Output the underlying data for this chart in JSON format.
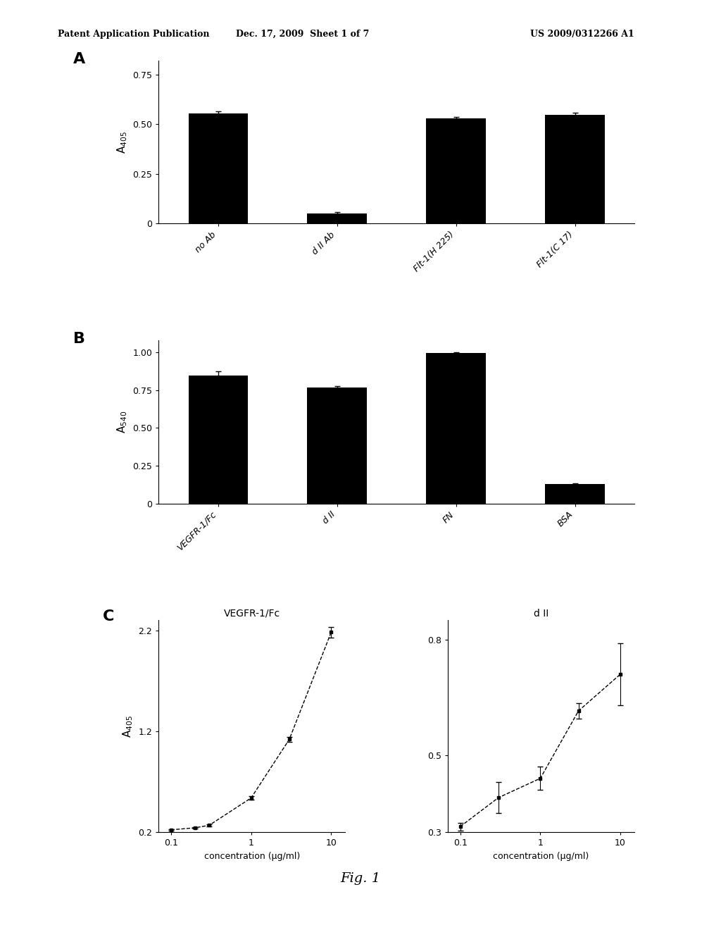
{
  "panel_A": {
    "categories": [
      "no Ab",
      "d II Ab",
      "Flt-1(H 225)",
      "Flt-1(C 17)"
    ],
    "values": [
      0.555,
      0.052,
      0.528,
      0.545
    ],
    "errors": [
      0.01,
      0.005,
      0.008,
      0.012
    ],
    "ylabel": "A$_{405}$",
    "yticks": [
      0,
      0.25,
      0.5,
      0.75
    ],
    "ylim": [
      0,
      0.82
    ],
    "label": "A"
  },
  "panel_B": {
    "categories": [
      "VEGFR-1/Fc",
      "d II",
      "FN",
      "BSA"
    ],
    "values": [
      0.845,
      0.77,
      0.995,
      0.13
    ],
    "errors": [
      0.03,
      0.008,
      0.008,
      0.005
    ],
    "ylabel": "A$_{540}$",
    "yticks": [
      0,
      0.25,
      0.5,
      0.75,
      1.0
    ],
    "ylim": [
      0,
      1.08
    ],
    "label": "B"
  },
  "panel_C": {
    "label": "C",
    "ylabel": "A$_{405}$",
    "xlabel": "concentration (μg/ml)",
    "left": {
      "title": "VEGFR-1/Fc",
      "x": [
        0.1,
        0.2,
        0.3,
        1.0,
        3.0,
        10.0
      ],
      "y": [
        0.225,
        0.245,
        0.27,
        0.54,
        1.12,
        2.18
      ],
      "yerr": [
        0.005,
        0.005,
        0.01,
        0.018,
        0.025,
        0.05
      ],
      "ylim": [
        0.2,
        2.3
      ],
      "yticks": [
        0.2,
        1.2,
        2.2
      ],
      "xlim": [
        0.07,
        15
      ],
      "xticks": [
        0.1,
        1,
        10
      ],
      "xticklabels": [
        "0.1",
        "1",
        "10"
      ]
    },
    "right": {
      "title": "d II",
      "x": [
        0.1,
        0.3,
        1.0,
        3.0,
        10.0
      ],
      "y": [
        0.315,
        0.39,
        0.44,
        0.615,
        0.71
      ],
      "yerr": [
        0.01,
        0.04,
        0.03,
        0.02,
        0.08
      ],
      "ylim": [
        0.3,
        0.85
      ],
      "yticks": [
        0.3,
        0.5,
        0.8
      ],
      "xlim": [
        0.07,
        15
      ],
      "xticks": [
        0.1,
        1,
        10
      ],
      "xticklabels": [
        "0.1",
        "1",
        "10"
      ]
    }
  },
  "bar_color": "#000000",
  "line_color": "#000000",
  "bg_color": "#ffffff",
  "header_left": "Patent Application Publication",
  "header_mid": "Dec. 17, 2009  Sheet 1 of 7",
  "header_right": "US 2009/0312266 A1",
  "footer_text": "Fig. 1"
}
